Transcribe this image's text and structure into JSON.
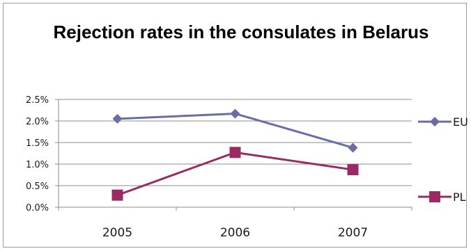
{
  "chart_data": {
    "type": "line",
    "title": "Rejection rates in the consulates in Belarus",
    "categories": [
      "2005",
      "2006",
      "2007"
    ],
    "series": [
      {
        "name": "EU",
        "values": [
          2.05,
          2.17,
          1.38
        ],
        "color": "#6a6ca8",
        "marker": "diamond"
      },
      {
        "name": "PL",
        "values": [
          0.28,
          1.27,
          0.87
        ],
        "color": "#9b2a63",
        "marker": "square"
      }
    ],
    "y_ticks": [
      "0.0%",
      "0.5%",
      "1.0%",
      "1.5%",
      "2.0%",
      "2.5%"
    ],
    "ylim": [
      0,
      2.5
    ],
    "xlabel": "",
    "ylabel": "",
    "grid": true,
    "legend_placement": "right"
  }
}
